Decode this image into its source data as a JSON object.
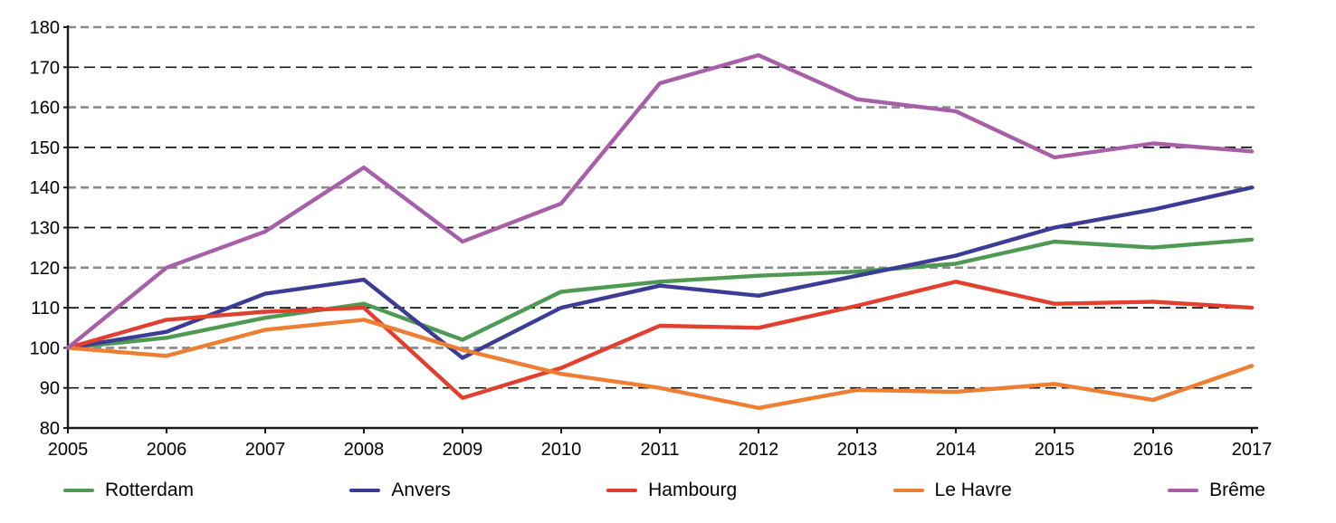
{
  "chart_data": {
    "type": "line",
    "title": "",
    "xlabel": "",
    "ylabel": "",
    "x": [
      2005,
      2006,
      2007,
      2008,
      2009,
      2010,
      2011,
      2012,
      2013,
      2014,
      2015,
      2016,
      2017
    ],
    "series": [
      {
        "name": "Rotterdam",
        "color": "#4f9a53",
        "values": [
          100,
          102.5,
          107.5,
          111,
          102,
          114,
          116.5,
          118,
          119,
          121,
          126.5,
          125,
          127
        ]
      },
      {
        "name": "Anvers",
        "color": "#3c3c96",
        "values": [
          100,
          104,
          113.5,
          117,
          97.5,
          110,
          115.5,
          113,
          118,
          123,
          130,
          134.5,
          140
        ]
      },
      {
        "name": "Hambourg",
        "color": "#e2402f",
        "values": [
          100,
          107,
          109,
          110,
          87.5,
          95,
          105.5,
          105,
          110.5,
          116.5,
          111,
          111.5,
          110
        ]
      },
      {
        "name": "Le Havre",
        "color": "#ee7e32",
        "values": [
          100,
          98,
          104.5,
          107,
          99.5,
          93.5,
          90,
          85,
          89.5,
          89,
          91,
          87,
          95.5
        ]
      },
      {
        "name": "Brême",
        "color": "#a75fa8",
        "values": [
          100,
          120,
          129,
          145,
          126.5,
          136,
          166,
          173,
          162,
          159,
          147.5,
          151,
          149
        ]
      }
    ],
    "ylim": [
      80,
      180
    ],
    "y_ticks": [
      180,
      170,
      160,
      150,
      140,
      130,
      120,
      110,
      100,
      90,
      80
    ],
    "x_tick_labels": [
      "2005",
      "2006",
      "2007",
      "2008",
      "2009",
      "2010",
      "2011",
      "2012",
      "2013",
      "2014",
      "2015",
      "2016",
      "2017"
    ],
    "grid": "horizontal dashed, alternating gray (even ticks from 180) and black (odd ticks)",
    "legend_position": "bottom"
  },
  "colors": {
    "background": "#ffffff",
    "axis": "#1a1a1a",
    "grid_gray": "#8a8a8a",
    "grid_black": "#161616",
    "tick_text": "#000000"
  }
}
